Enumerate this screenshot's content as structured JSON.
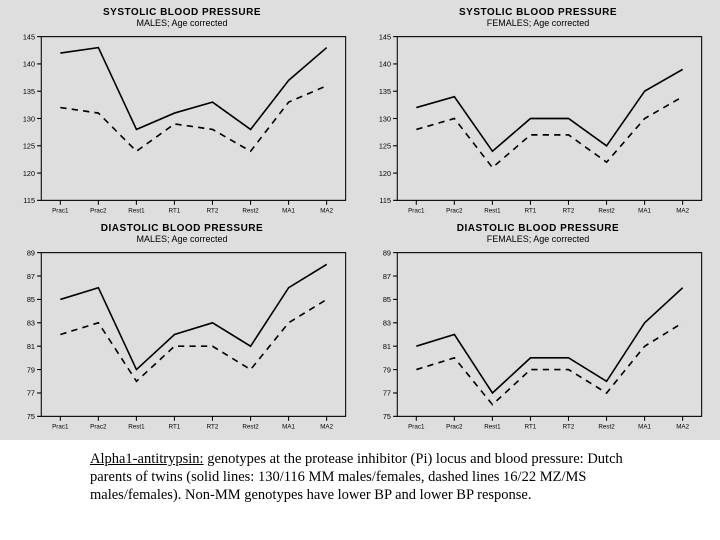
{
  "figure": {
    "background_color": "#dedede",
    "x_categories": [
      "Prac1",
      "Prac2",
      "Rest1",
      "RT1",
      "RT2",
      "Rest2",
      "MA1",
      "MA2"
    ],
    "panels": [
      {
        "id": "sbp-males",
        "title_line1": "SYSTOLIC BLOOD PRESSURE",
        "title_line2": "MALES; Age corrected",
        "ylim": [
          115,
          145
        ],
        "ytick_step": 5,
        "y_tick_fontsize": 7,
        "x_tick_fontsize": 6,
        "series_solid": [
          142,
          143,
          128,
          131,
          133,
          128,
          137,
          143
        ],
        "series_dashed": [
          132,
          131,
          124,
          129,
          128,
          124,
          133,
          136
        ],
        "line_color": "#000000",
        "dash_pattern": "6 5"
      },
      {
        "id": "sbp-females",
        "title_line1": "SYSTOLIC BLOOD PRESSURE",
        "title_line2": "FEMALES; Age corrected",
        "ylim": [
          115,
          145
        ],
        "ytick_step": 5,
        "y_tick_fontsize": 7,
        "x_tick_fontsize": 6,
        "series_solid": [
          132,
          134,
          124,
          130,
          130,
          125,
          135,
          139
        ],
        "series_dashed": [
          128,
          130,
          121,
          127,
          127,
          122,
          130,
          134
        ],
        "line_color": "#000000",
        "dash_pattern": "6 5"
      },
      {
        "id": "dbp-males",
        "title_line1": "DIASTOLIC BLOOD PRESSURE",
        "title_line2": "MALES; Age corrected",
        "ylim": [
          75,
          89
        ],
        "ytick_step": 2,
        "y_tick_fontsize": 7,
        "x_tick_fontsize": 6,
        "series_solid": [
          85,
          86,
          79,
          82,
          83,
          81,
          86,
          88
        ],
        "series_dashed": [
          82,
          83,
          78,
          81,
          81,
          79,
          83,
          85
        ],
        "line_color": "#000000",
        "dash_pattern": "6 5"
      },
      {
        "id": "dbp-females",
        "title_line1": "DIASTOLIC BLOOD PRESSURE",
        "title_line2": "FEMALES; Age corrected",
        "ylim": [
          75,
          89
        ],
        "ytick_step": 2,
        "y_tick_fontsize": 7,
        "x_tick_fontsize": 6,
        "series_solid": [
          81,
          82,
          77,
          80,
          80,
          78,
          83,
          86
        ],
        "series_dashed": [
          79,
          80,
          76,
          79,
          79,
          77,
          81,
          83
        ],
        "line_color": "#000000",
        "dash_pattern": "6 5"
      }
    ]
  },
  "caption": {
    "lead": "Alpha1-antitrypsin:",
    "rest": " genotypes at the protease inhibitor (Pi) locus and blood pressure: Dutch parents of twins (solid lines: 130/116 MM males/females, dashed lines 16/22 MZ/MS males/females). Non-MM genotypes have lower BP and lower BP response."
  }
}
